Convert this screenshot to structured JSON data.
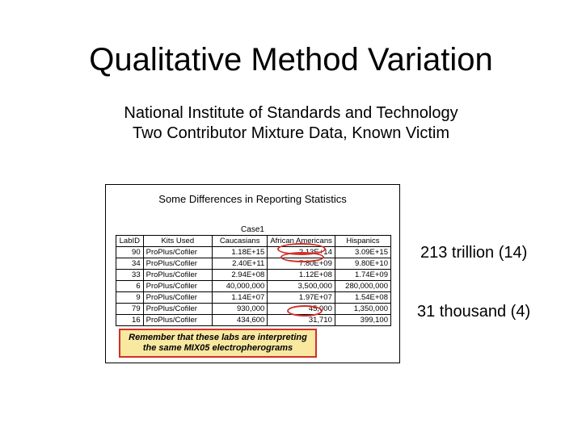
{
  "title": "Qualitative Method Variation",
  "subtitle_line1": "National Institute of Standards and Technology",
  "subtitle_line2": "Two Contributor Mixture Data, Known Victim",
  "panel_title": "Some Differences in Reporting Statistics",
  "case_label": "Case1",
  "columns": [
    "LabID",
    "Kits Used",
    "Caucasians",
    "African Americans",
    "Hispanics"
  ],
  "rows": [
    [
      "90",
      "ProPlus/Cofiler",
      "1.18E+15",
      "2.13E+14",
      "3.09E+15"
    ],
    [
      "34",
      "ProPlus/Cofiler",
      "2.40E+11",
      "7.80E+09",
      "9.80E+10"
    ],
    [
      "33",
      "ProPlus/Cofiler",
      "2.94E+08",
      "1.12E+08",
      "1.74E+09"
    ],
    [
      "6",
      "ProPlus/Cofiler",
      "40,000,000",
      "3,500,000",
      "280,000,000"
    ],
    [
      "9",
      "ProPlus/Cofiler",
      "1.14E+07",
      "1.97E+07",
      "1.54E+08"
    ],
    [
      "79",
      "ProPlus/Cofiler",
      "930,000",
      "45,000",
      "1,350,000"
    ],
    [
      "16",
      "ProPlus/Cofiler",
      "434,600",
      "31,710",
      "399,100"
    ]
  ],
  "remember_text": "Remember that these labs are interpreting the same MIX05 electropherograms",
  "callout1": "213 trillion (14)",
  "callout2": "31 thousand (4)",
  "colors": {
    "highlight_border": "#d0302a",
    "highlight_fill": "#f8e8a0",
    "text": "#000000",
    "background": "#ffffff"
  }
}
